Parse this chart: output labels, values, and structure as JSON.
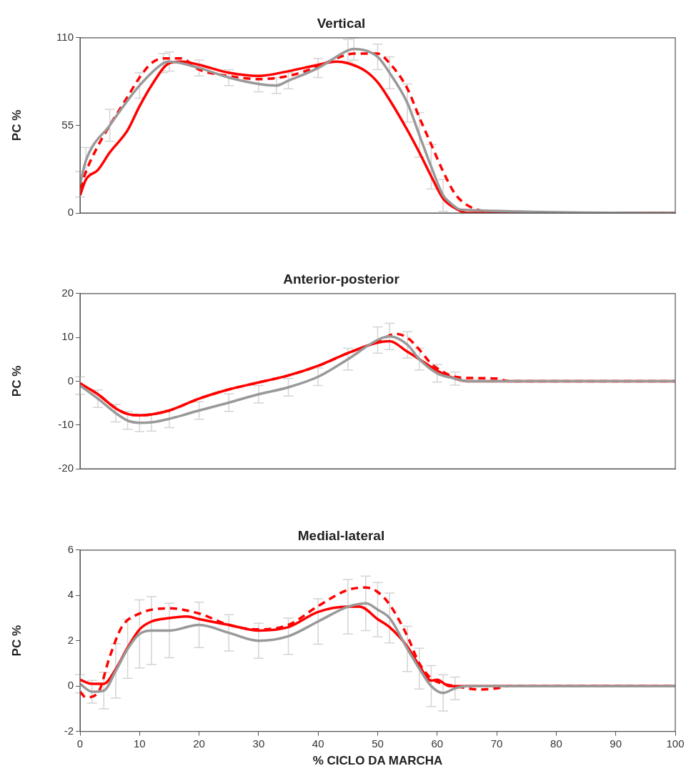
{
  "chart_data": [
    {
      "type": "line",
      "title": "Vertical",
      "ylabel": "PC %",
      "xlim": [
        0,
        100
      ],
      "ylim": [
        0,
        110
      ],
      "yticks": [
        0,
        55,
        110
      ],
      "tick_labels": "y",
      "grid": false,
      "legend": false,
      "marker": "none",
      "series": [
        {
          "color": "#999999",
          "x": [
            0,
            1,
            5,
            10,
            14,
            15,
            20,
            25,
            30,
            33,
            35,
            40,
            45,
            46,
            50,
            52,
            55,
            57,
            59,
            61,
            62,
            64,
            100
          ],
          "values": [
            18,
            33,
            55,
            80,
            94,
            95,
            91,
            85,
            81,
            80,
            83,
            91,
            102,
            103,
            98,
            88,
            69,
            49,
            29,
            11,
            7,
            2,
            0
          ],
          "errors": [
            8,
            8,
            10,
            8,
            6,
            6,
            5,
            5,
            5,
            5,
            5,
            6,
            7,
            7,
            8,
            10,
            12,
            14,
            14,
            10,
            null,
            null,
            null
          ]
        },
        {
          "color": "#ff0000",
          "line_style": "solid",
          "x": [
            0,
            1,
            3,
            5,
            8,
            10,
            12,
            15,
            17,
            20,
            25,
            30,
            35,
            40,
            43,
            45,
            48,
            50,
            52,
            55,
            57,
            59,
            61,
            63,
            65,
            100
          ],
          "values": [
            11,
            21,
            27,
            38,
            52,
            67,
            80,
            94,
            95,
            93,
            88,
            86,
            89,
            93,
            95,
            94,
            89,
            82,
            71,
            52,
            38,
            23,
            9,
            3,
            0,
            0
          ]
        },
        {
          "color": "#ff0000",
          "line_style": "dashed",
          "x": [
            0,
            1,
            3,
            5,
            8,
            10,
            12,
            14,
            17,
            20,
            25,
            30,
            35,
            40,
            43,
            46,
            50,
            52,
            55,
            57,
            59,
            61,
            63,
            65,
            68,
            72,
            100
          ],
          "values": [
            15,
            26,
            42,
            55,
            73,
            85,
            94,
            97,
            97,
            90,
            86,
            84,
            86,
            92,
            97,
            100,
            100,
            94,
            78,
            60,
            43,
            26,
            12,
            5,
            1,
            0,
            0
          ]
        }
      ]
    },
    {
      "type": "line",
      "title": "Anterior-posterior",
      "ylabel": "PC %",
      "xlim": [
        0,
        100
      ],
      "ylim": [
        -20,
        20
      ],
      "yticks": [
        -20,
        -10,
        0,
        10,
        20
      ],
      "tick_labels": "y",
      "grid": false,
      "legend": false,
      "marker": "none",
      "series": [
        {
          "color": "#999999",
          "x": [
            0,
            3,
            6,
            8,
            10,
            12,
            15,
            20,
            25,
            30,
            35,
            40,
            45,
            50,
            52,
            55,
            57,
            60,
            63,
            65,
            100
          ],
          "values": [
            -1,
            -4,
            -7.3,
            -9,
            -9.5,
            -9.4,
            -8.6,
            -6.7,
            -4.9,
            -3,
            -1.4,
            1,
            5,
            9.4,
            10.2,
            8.3,
            5,
            1.8,
            0.6,
            0,
            0
          ],
          "errors": [
            2,
            2,
            2,
            2,
            2,
            2,
            2,
            2,
            2,
            2,
            2,
            2,
            2.5,
            3,
            3,
            3,
            2.5,
            2,
            1.5,
            null,
            null
          ]
        },
        {
          "color": "#ff0000",
          "line_style": "solid",
          "x": [
            0,
            3,
            6,
            8,
            10,
            12,
            15,
            20,
            25,
            30,
            35,
            40,
            45,
            50,
            52,
            55,
            57,
            60,
            63,
            65,
            100
          ],
          "values": [
            -0.5,
            -3,
            -6.2,
            -7.5,
            -7.8,
            -7.6,
            -6.7,
            -4,
            -1.9,
            -0.3,
            1.3,
            3.5,
            6.4,
            8.8,
            9.1,
            6.7,
            5,
            2.4,
            0.6,
            0,
            0
          ]
        },
        {
          "color": "#ff0000",
          "line_style": "dashed",
          "x": [
            0,
            3,
            6,
            8,
            10,
            12,
            15,
            20,
            25,
            30,
            35,
            40,
            45,
            50,
            53,
            55,
            57,
            59,
            61,
            63,
            66,
            70,
            72,
            100
          ],
          "values": [
            -0.5,
            -3,
            -6.2,
            -7.5,
            -7.8,
            -7.6,
            -6.7,
            -4,
            -1.9,
            -0.3,
            1.3,
            3.5,
            6.4,
            9,
            10.8,
            9.9,
            7.2,
            4,
            2.1,
            1,
            0.7,
            0.6,
            0,
            0
          ]
        }
      ]
    },
    {
      "type": "line",
      "title": "Medial-lateral",
      "ylabel": "PC %",
      "xlabel": "% CICLO DA MARCHA",
      "xlim": [
        0,
        100
      ],
      "xticks": [
        0,
        10,
        20,
        30,
        40,
        50,
        60,
        70,
        80,
        90,
        100
      ],
      "ylim": [
        -2,
        6
      ],
      "yticks": [
        -2,
        0,
        2,
        4,
        6
      ],
      "grid": false,
      "legend": false,
      "marker": "none",
      "series": [
        {
          "color": "#999999",
          "x": [
            0,
            2,
            4,
            6,
            8,
            10,
            12,
            15,
            20,
            25,
            30,
            35,
            40,
            45,
            48,
            50,
            52,
            55,
            57,
            59,
            61,
            63,
            65,
            100
          ],
          "values": [
            0.1,
            -0.25,
            -0.2,
            0.67,
            1.64,
            2.3,
            2.45,
            2.45,
            2.7,
            2.35,
            2,
            2.2,
            2.85,
            3.5,
            3.65,
            3.37,
            3,
            1.64,
            0.77,
            0,
            -0.3,
            -0.1,
            0,
            0
          ],
          "errors": [
            0.4,
            0.5,
            0.8,
            1.2,
            1.3,
            1.5,
            1.5,
            1.2,
            1,
            0.8,
            0.77,
            0.8,
            1,
            1.2,
            1.2,
            1.2,
            1.1,
            1,
            0.9,
            0.9,
            0.8,
            0.5,
            null,
            null
          ]
        },
        {
          "color": "#ff0000",
          "line_style": "solid",
          "x": [
            0,
            2,
            4,
            6,
            8,
            10,
            12,
            15,
            18,
            20,
            25,
            30,
            35,
            40,
            45,
            47,
            50,
            52,
            55,
            57,
            59,
            60,
            62,
            65,
            100
          ],
          "values": [
            0.28,
            0.1,
            0.1,
            0.75,
            1.7,
            2.5,
            2.85,
            3,
            3.07,
            2.95,
            2.7,
            2.45,
            2.6,
            3.27,
            3.5,
            3.5,
            2.95,
            2.6,
            1.74,
            0.9,
            0.24,
            0.28,
            0,
            0,
            0
          ]
        },
        {
          "color": "#ff0000",
          "line_style": "dashed",
          "x": [
            0,
            1,
            3,
            5,
            7,
            10,
            15,
            20,
            25,
            30,
            35,
            40,
            45,
            48,
            50,
            52,
            55,
            57,
            59,
            61,
            63,
            67,
            70,
            72,
            100
          ],
          "values": [
            -0.25,
            -0.5,
            -0.3,
            1.3,
            2.6,
            3.2,
            3.43,
            3.2,
            2.7,
            2.5,
            2.7,
            3.53,
            4.24,
            4.35,
            4.15,
            3.6,
            2.2,
            1,
            0.34,
            0.1,
            0,
            -0.15,
            -0.1,
            0,
            0
          ]
        }
      ]
    }
  ]
}
